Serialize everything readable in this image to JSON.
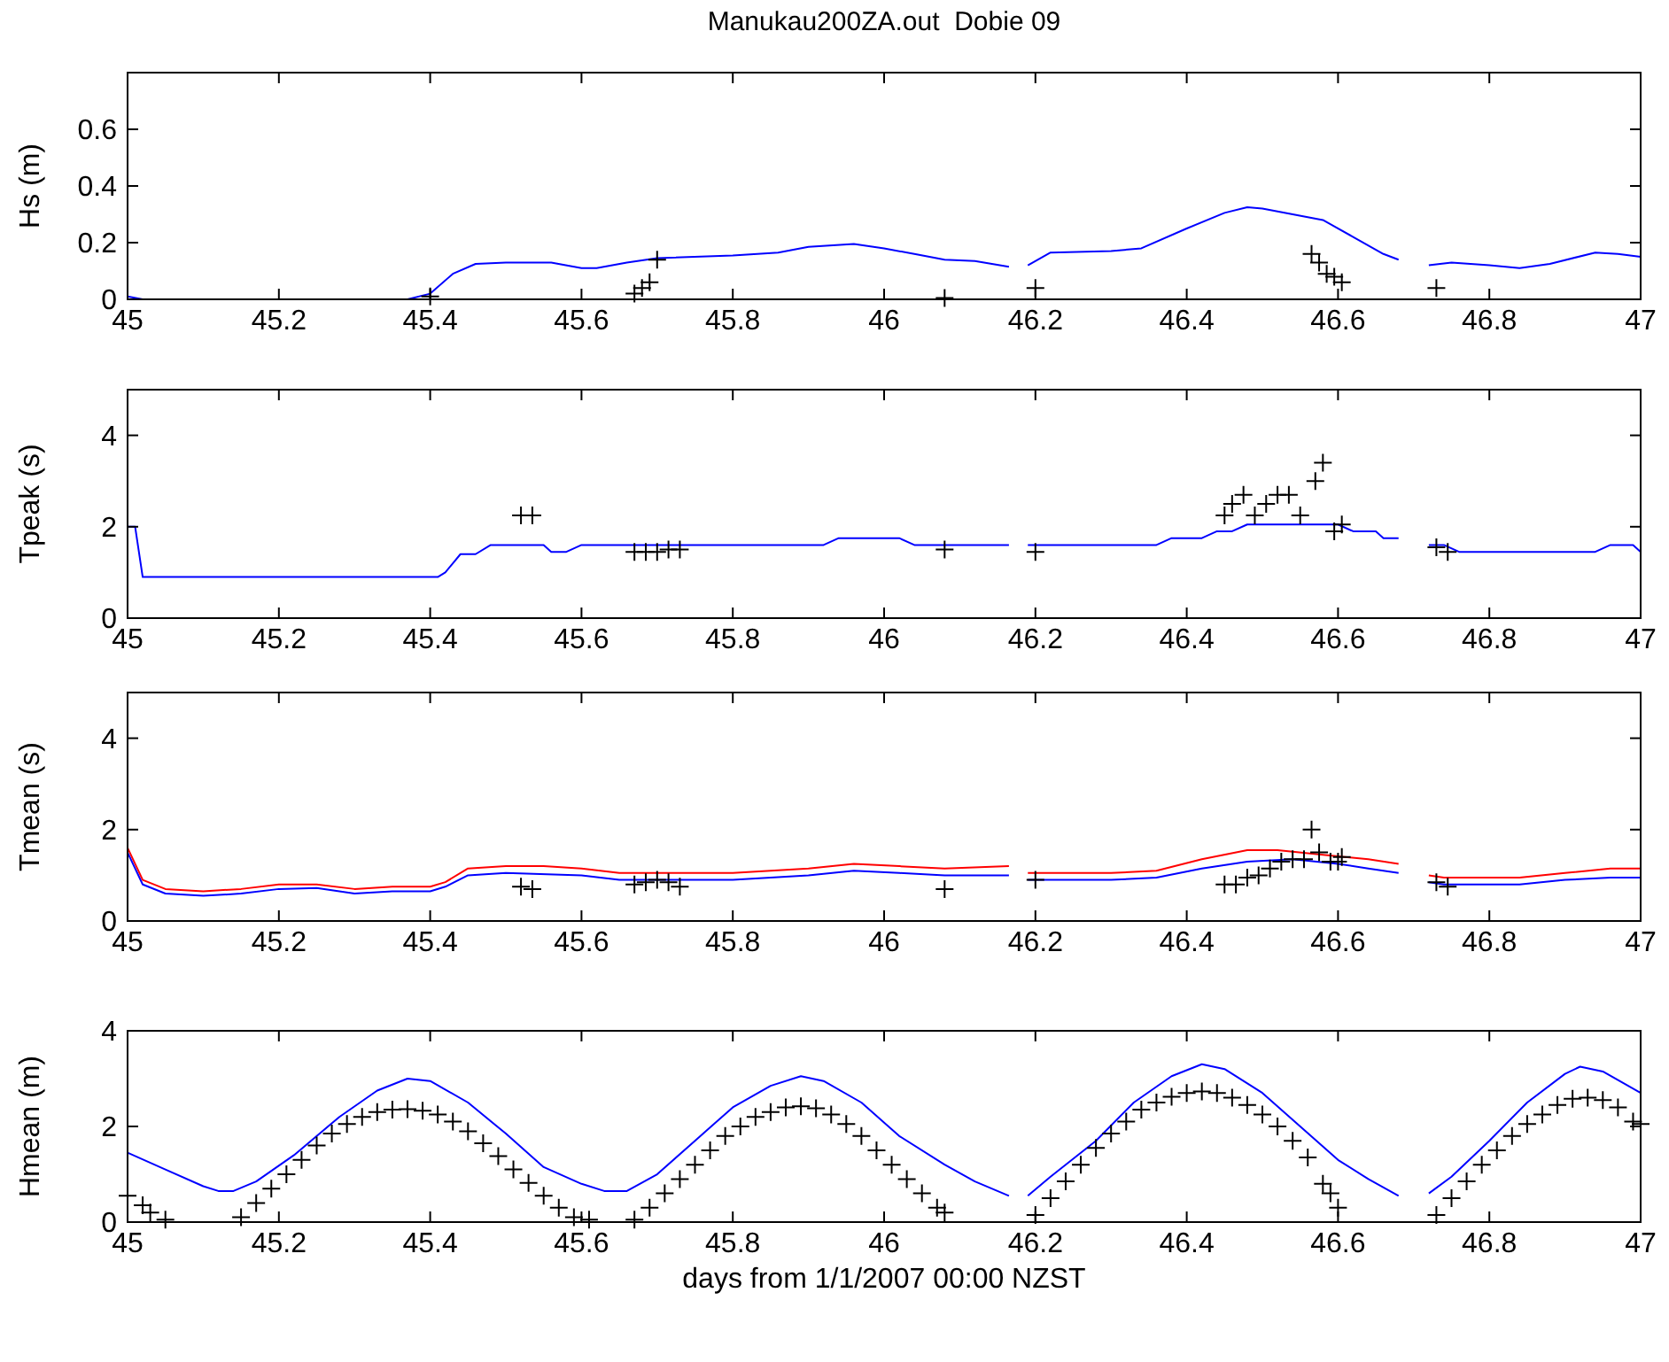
{
  "chart_data": [
    {
      "type": "line",
      "title": "Manukau200ZA.out  Dobie 09",
      "ylabel": "Hs (m)",
      "xlim": [
        45,
        47
      ],
      "xticks": [
        45,
        45.2,
        45.4,
        45.6,
        45.8,
        46,
        46.2,
        46.4,
        46.6,
        46.8,
        47
      ],
      "ylim": [
        0,
        0.8
      ],
      "yticks": [
        0,
        0.2,
        0.4,
        0.6
      ],
      "grid": false,
      "series": [
        {
          "type": "line",
          "color": "#0000ff",
          "x": [
            45,
            45.02,
            45.37,
            45.4,
            45.43,
            45.46,
            45.5,
            45.56,
            45.6,
            45.62,
            45.66,
            45.7,
            45.8,
            45.86,
            45.9,
            45.96,
            46,
            46.04,
            46.08,
            46.12,
            46.165,
            null,
            46.19,
            46.22,
            46.3,
            46.34,
            46.4,
            46.45,
            46.48,
            46.5,
            46.54,
            46.58,
            46.62,
            46.66,
            46.68,
            null,
            46.72,
            46.75,
            46.8,
            46.84,
            46.88,
            46.94,
            46.97,
            47
          ],
          "values": [
            0.01,
            0,
            0,
            0.02,
            0.09,
            0.125,
            0.13,
            0.13,
            0.11,
            0.11,
            0.13,
            0.145,
            0.155,
            0.165,
            0.185,
            0.195,
            0.18,
            0.16,
            0.14,
            0.135,
            0.115,
            null,
            0.12,
            0.165,
            0.17,
            0.18,
            0.25,
            0.305,
            0.325,
            0.32,
            0.3,
            0.28,
            0.22,
            0.16,
            0.14,
            null,
            0.12,
            0.13,
            0.12,
            0.11,
            0.125,
            0.165,
            0.16,
            0.15
          ]
        },
        {
          "type": "scatter",
          "marker": "cross",
          "color": "#000000",
          "x": [
            45.4,
            45.67,
            45.68,
            45.69,
            45.7,
            46.08,
            46.2,
            46.565,
            46.575,
            46.585,
            46.595,
            46.605,
            46.73
          ],
          "values": [
            0.01,
            0.02,
            0.04,
            0.06,
            0.14,
            0.005,
            0.04,
            0.16,
            0.13,
            0.09,
            0.08,
            0.06,
            0.04
          ]
        }
      ]
    },
    {
      "type": "line",
      "ylabel": "Tpeak (s)",
      "xlim": [
        45,
        47
      ],
      "xticks": [
        45,
        45.2,
        45.4,
        45.6,
        45.8,
        46,
        46.2,
        46.4,
        46.6,
        46.8,
        47
      ],
      "ylim": [
        0,
        5
      ],
      "yticks": [
        0,
        2,
        4
      ],
      "grid": false,
      "series": [
        {
          "type": "line",
          "color": "#0000ff",
          "x": [
            45,
            45.01,
            45.02,
            45.41,
            45.42,
            45.44,
            45.46,
            45.48,
            45.55,
            45.56,
            45.58,
            45.6,
            45.92,
            45.94,
            46.02,
            46.04,
            46.165,
            null,
            46.19,
            46.36,
            46.38,
            46.42,
            46.44,
            46.46,
            46.48,
            46.6,
            46.62,
            46.65,
            46.66,
            46.68,
            null,
            46.72,
            46.74,
            46.76,
            46.94,
            46.96,
            46.99,
            47
          ],
          "values": [
            2,
            2,
            0.9,
            0.9,
            1,
            1.4,
            1.4,
            1.6,
            1.6,
            1.45,
            1.45,
            1.6,
            1.6,
            1.75,
            1.75,
            1.6,
            1.6,
            null,
            1.6,
            1.6,
            1.75,
            1.75,
            1.9,
            1.9,
            2.05,
            2.05,
            1.9,
            1.9,
            1.75,
            1.75,
            null,
            1.6,
            1.6,
            1.45,
            1.45,
            1.6,
            1.6,
            1.45
          ]
        },
        {
          "type": "scatter",
          "marker": "cross",
          "color": "#000000",
          "x": [
            45.52,
            45.535,
            45.67,
            45.685,
            45.7,
            45.715,
            45.73,
            46.08,
            46.2,
            46.45,
            46.46,
            46.475,
            46.49,
            46.505,
            46.52,
            46.535,
            46.55,
            46.57,
            46.58,
            46.595,
            46.605,
            46.73,
            46.745
          ],
          "values": [
            2.25,
            2.25,
            1.45,
            1.45,
            1.45,
            1.5,
            1.5,
            1.5,
            1.45,
            2.25,
            2.5,
            2.7,
            2.25,
            2.5,
            2.7,
            2.7,
            2.25,
            3,
            3.4,
            1.9,
            2.05,
            1.55,
            1.45
          ]
        }
      ]
    },
    {
      "type": "line",
      "ylabel": "Tmean (s)",
      "xlim": [
        45,
        47
      ],
      "xticks": [
        45,
        45.2,
        45.4,
        45.6,
        45.8,
        46,
        46.2,
        46.4,
        46.6,
        46.8,
        47
      ],
      "ylim": [
        0,
        5
      ],
      "yticks": [
        0,
        2,
        4
      ],
      "grid": false,
      "series": [
        {
          "type": "line",
          "color": "#ff0000",
          "x": [
            45,
            45.02,
            45.05,
            45.1,
            45.15,
            45.2,
            45.25,
            45.3,
            45.35,
            45.4,
            45.42,
            45.45,
            45.5,
            45.55,
            45.6,
            45.65,
            45.8,
            45.9,
            45.96,
            46.02,
            46.08,
            46.165,
            null,
            46.19,
            46.3,
            46.36,
            46.42,
            46.48,
            46.52,
            46.58,
            46.64,
            46.68,
            null,
            46.72,
            46.74,
            46.84,
            46.9,
            46.96,
            47
          ],
          "values": [
            1.6,
            0.9,
            0.7,
            0.65,
            0.7,
            0.8,
            0.8,
            0.7,
            0.75,
            0.75,
            0.85,
            1.15,
            1.2,
            1.2,
            1.15,
            1.05,
            1.05,
            1.15,
            1.25,
            1.2,
            1.15,
            1.2,
            null,
            1.05,
            1.05,
            1.1,
            1.35,
            1.55,
            1.55,
            1.45,
            1.35,
            1.25,
            null,
            1,
            0.95,
            0.95,
            1.05,
            1.15,
            1.15
          ]
        },
        {
          "type": "line",
          "color": "#0000ff",
          "x": [
            45,
            45.02,
            45.05,
            45.1,
            45.15,
            45.2,
            45.25,
            45.3,
            45.35,
            45.4,
            45.42,
            45.45,
            45.5,
            45.6,
            45.65,
            45.8,
            45.9,
            45.96,
            46.02,
            46.08,
            46.165,
            null,
            46.19,
            46.3,
            46.36,
            46.42,
            46.48,
            46.54,
            46.6,
            46.64,
            46.68,
            null,
            46.72,
            46.74,
            46.84,
            46.9,
            46.96,
            47
          ],
          "values": [
            1.5,
            0.8,
            0.6,
            0.55,
            0.6,
            0.7,
            0.72,
            0.6,
            0.65,
            0.65,
            0.75,
            1,
            1.05,
            1,
            0.9,
            0.9,
            1,
            1.1,
            1.05,
            1,
            1,
            null,
            0.9,
            0.9,
            0.95,
            1.15,
            1.3,
            1.35,
            1.25,
            1.15,
            1.05,
            null,
            0.85,
            0.8,
            0.8,
            0.9,
            0.95,
            0.95
          ]
        },
        {
          "type": "scatter",
          "marker": "cross",
          "color": "#000000",
          "x": [
            45.52,
            45.535,
            45.67,
            45.685,
            45.7,
            45.715,
            45.73,
            46.08,
            46.2,
            46.45,
            46.465,
            46.48,
            46.495,
            46.51,
            46.525,
            46.54,
            46.555,
            46.565,
            46.575,
            46.59,
            46.6,
            46.605,
            46.73,
            46.745
          ],
          "values": [
            0.75,
            0.7,
            0.8,
            0.85,
            0.9,
            0.85,
            0.75,
            0.7,
            0.9,
            0.8,
            0.8,
            0.95,
            1,
            1.15,
            1.3,
            1.35,
            1.35,
            2,
            1.5,
            1.3,
            1.3,
            1.4,
            0.85,
            0.75
          ]
        }
      ]
    },
    {
      "type": "line",
      "ylabel": "Hmean (m)",
      "xlabel": "days from 1/1/2007 00:00 NZST",
      "xlim": [
        45,
        47
      ],
      "xticks": [
        45,
        45.2,
        45.4,
        45.6,
        45.8,
        46,
        46.2,
        46.4,
        46.6,
        46.8,
        47
      ],
      "ylim": [
        0,
        4
      ],
      "yticks": [
        0,
        2,
        4
      ],
      "grid": false,
      "series": [
        {
          "type": "line",
          "color": "#0000ff",
          "x": [
            45,
            45.05,
            45.1,
            45.12,
            45.14,
            45.17,
            45.22,
            45.28,
            45.33,
            45.37,
            45.4,
            45.45,
            45.5,
            45.55,
            45.6,
            45.63,
            45.66,
            45.7,
            45.75,
            45.8,
            45.85,
            45.89,
            45.92,
            45.97,
            46.02,
            46.08,
            46.12,
            46.165,
            null,
            46.19,
            46.22,
            46.28,
            46.33,
            46.38,
            46.42,
            46.45,
            46.5,
            46.55,
            46.6,
            46.64,
            46.68,
            null,
            46.72,
            46.75,
            46.8,
            46.85,
            46.9,
            46.92,
            46.95,
            47
          ],
          "values": [
            1.45,
            1.1,
            0.75,
            0.65,
            0.65,
            0.85,
            1.4,
            2.2,
            2.75,
            3,
            2.95,
            2.5,
            1.85,
            1.15,
            0.8,
            0.65,
            0.65,
            1,
            1.7,
            2.4,
            2.85,
            3.05,
            2.95,
            2.5,
            1.8,
            1.2,
            0.85,
            0.55,
            null,
            0.55,
            0.95,
            1.7,
            2.5,
            3.05,
            3.3,
            3.2,
            2.7,
            2,
            1.3,
            0.9,
            0.55,
            null,
            0.6,
            0.95,
            1.7,
            2.5,
            3.1,
            3.25,
            3.15,
            2.7
          ]
        },
        {
          "type": "scatter",
          "marker": "cross",
          "color": "#000000",
          "x": [
            45,
            45.02,
            45.03,
            45.05,
            45.15,
            45.17,
            45.19,
            45.21,
            45.23,
            45.25,
            45.27,
            45.29,
            45.31,
            45.33,
            45.35,
            45.37,
            45.39,
            45.41,
            45.43,
            45.45,
            45.47,
            45.49,
            45.51,
            45.53,
            45.55,
            45.57,
            45.59,
            45.61,
            45.67,
            45.69,
            45.71,
            45.73,
            45.75,
            45.77,
            45.79,
            45.81,
            45.83,
            45.85,
            45.87,
            45.89,
            45.91,
            45.93,
            45.95,
            45.97,
            45.99,
            46.01,
            46.03,
            46.05,
            46.07,
            46.08,
            46.2,
            46.22,
            46.24,
            46.26,
            46.28,
            46.3,
            46.32,
            46.34,
            46.36,
            46.38,
            46.4,
            46.42,
            46.44,
            46.46,
            46.48,
            46.5,
            46.52,
            46.54,
            46.56,
            46.58,
            46.59,
            46.6,
            46.73,
            46.75,
            46.77,
            46.79,
            46.81,
            46.83,
            46.85,
            46.87,
            46.89,
            46.91,
            46.93,
            46.95,
            46.97,
            46.99,
            47
          ],
          "values": [
            0.55,
            0.35,
            0.2,
            0.05,
            0.1,
            0.4,
            0.7,
            1,
            1.3,
            1.6,
            1.85,
            2.05,
            2.2,
            2.3,
            2.35,
            2.36,
            2.33,
            2.25,
            2.1,
            1.9,
            1.65,
            1.38,
            1.1,
            0.82,
            0.55,
            0.3,
            0.1,
            0.05,
            0.05,
            0.3,
            0.6,
            0.9,
            1.2,
            1.5,
            1.8,
            2,
            2.2,
            2.3,
            2.4,
            2.42,
            2.38,
            2.25,
            2.05,
            1.8,
            1.5,
            1.2,
            0.9,
            0.6,
            0.3,
            0.2,
            0.15,
            0.5,
            0.85,
            1.2,
            1.55,
            1.85,
            2.1,
            2.35,
            2.5,
            2.62,
            2.7,
            2.73,
            2.7,
            2.6,
            2.45,
            2.25,
            2,
            1.7,
            1.35,
            0.8,
            0.6,
            0.3,
            0.15,
            0.5,
            0.85,
            1.2,
            1.5,
            1.8,
            2.05,
            2.25,
            2.45,
            2.58,
            2.6,
            2.55,
            2.4,
            2.1,
            2.05
          ]
        }
      ]
    }
  ]
}
